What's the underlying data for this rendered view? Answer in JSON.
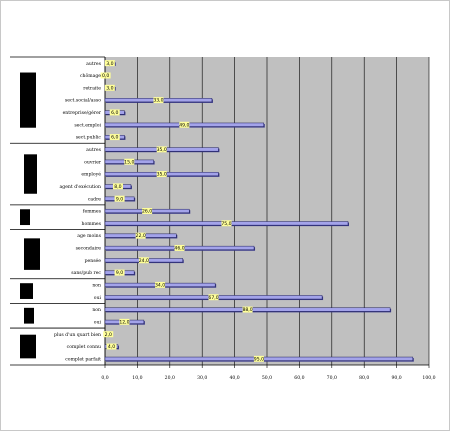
{
  "chart_data": {
    "type": "bar",
    "orientation": "horizontal",
    "title": "",
    "xlabel": "",
    "ylabel": "",
    "xlim": [
      0,
      100
    ],
    "x_ticks": [
      "0,0",
      "10,0",
      "20,0",
      "30,0",
      "40,0",
      "50,0",
      "60,0",
      "70,0",
      "80,0",
      "90,0",
      "100,0"
    ],
    "grid": true,
    "legend": "none",
    "colors": {
      "bar": "#a3a3ea",
      "bar_shadow": "#3a3a8a",
      "plot_bg": "#c0c0c0",
      "label_bg": "#ffff99",
      "group_block": "#000000"
    },
    "categories": [
      "autres",
      "chômage",
      "retraite",
      "sect.social/asso",
      "entreprise/gérer",
      "sect.emploi",
      "sect.public",
      "autres",
      "ouvrier",
      "employé",
      "agent d'exécution",
      "cadre",
      "femmes",
      "hommes",
      "age moins",
      "secondaire",
      "pensée",
      "sans/pub rec",
      "non",
      "oui",
      "non",
      "oui",
      "plus d'un quart bien",
      "complet connu",
      "complet parfait"
    ],
    "values": [
      3,
      0,
      3,
      33,
      6,
      49,
      6,
      35,
      15,
      35,
      8,
      9,
      26,
      75,
      22,
      46,
      24,
      9,
      34,
      67,
      88,
      12,
      2,
      4,
      95
    ],
    "data_labels": [
      "3,0",
      "0,0",
      "3,0",
      "33,0",
      "6,0",
      "49,0",
      "6,0",
      "35,0",
      "15,0",
      "35,0",
      "8,0",
      "9,0",
      "26,0",
      "75,0",
      "22,0",
      "46,0",
      "24,0",
      "9,0",
      "34,0",
      "67,0",
      "88,0",
      "12,0",
      "2,0",
      "4,0",
      "95,0"
    ],
    "groups": [
      {
        "start": 0,
        "end": 6
      },
      {
        "start": 7,
        "end": 11
      },
      {
        "start": 12,
        "end": 13
      },
      {
        "start": 14,
        "end": 17
      },
      {
        "start": 18,
        "end": 19
      },
      {
        "start": 20,
        "end": 21
      },
      {
        "start": 22,
        "end": 24
      }
    ]
  }
}
